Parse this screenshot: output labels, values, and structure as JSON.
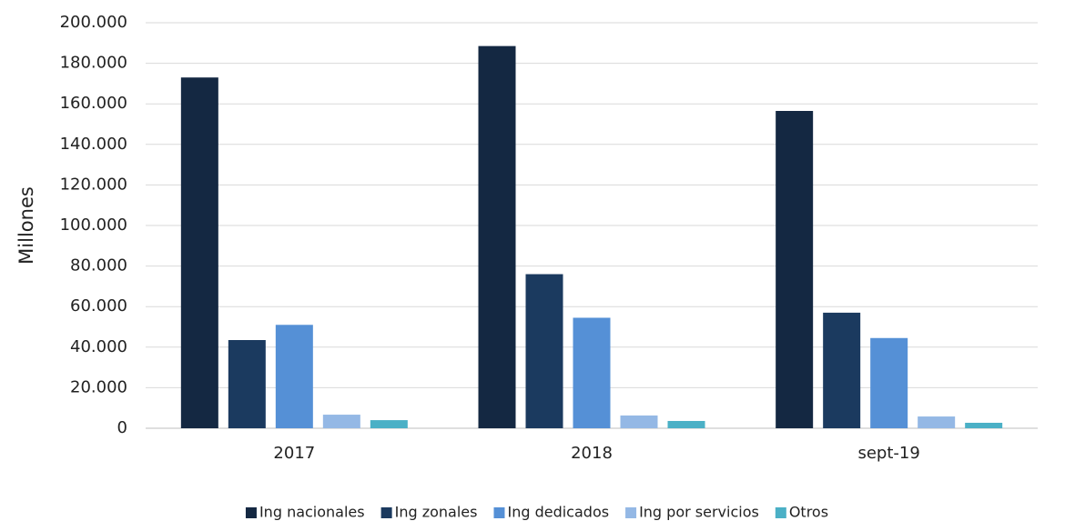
{
  "chart_data": {
    "type": "bar",
    "y_label": "Millones",
    "categories": [
      "2017",
      "2018",
      "sept-19"
    ],
    "series": [
      {
        "name": "Ing nacionales",
        "color": "#142842",
        "values": [
          173000,
          188500,
          156500
        ]
      },
      {
        "name": "Ing zonales",
        "color": "#1b3a5f",
        "values": [
          43500,
          76000,
          57000
        ]
      },
      {
        "name": "Ing dedicados",
        "color": "#5590d6",
        "values": [
          51000,
          54500,
          44500
        ]
      },
      {
        "name": "Ing por servicios",
        "color": "#94b8e5",
        "values": [
          6700,
          6300,
          5800
        ]
      },
      {
        "name": "Otros",
        "color": "#4bb0c6",
        "values": [
          4000,
          3600,
          2700
        ]
      }
    ],
    "ylim": [
      0,
      200000
    ],
    "yticks": [
      0,
      {
        "value": 20000,
        "label": "20.000"
      },
      {
        "value": 40000,
        "label": "40.000"
      },
      {
        "value": 60000,
        "label": "60.000"
      },
      {
        "value": 80000,
        "label": "80.000"
      },
      {
        "value": 100000,
        "label": "100.000"
      },
      {
        "value": 120000,
        "label": "120.000"
      },
      {
        "value": 140000,
        "label": "140.000"
      },
      {
        "value": 160000,
        "label": "160.000"
      },
      {
        "value": 180000,
        "label": "180.000"
      },
      {
        "value": 200000,
        "label": "200.000"
      }
    ],
    "grid": true,
    "legend": "bottom"
  }
}
